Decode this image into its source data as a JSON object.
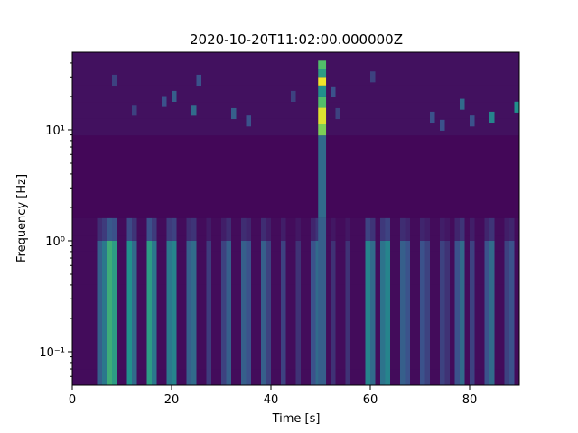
{
  "chart_data": {
    "type": "heatmap",
    "title": "2020-10-20T11:02:00.000000Z",
    "xlabel": "Time [s]",
    "ylabel": "Frequency [Hz]",
    "xlim": [
      0,
      90
    ],
    "ylim": [
      0.05,
      50
    ],
    "yscale": "log",
    "colormap": "viridis",
    "grid": false,
    "legend": "none",
    "x_ticks": [
      0,
      20,
      40,
      60,
      80
    ],
    "x_tick_labels": [
      "0",
      "20",
      "40",
      "60",
      "80"
    ],
    "y_ticks": [
      0.1,
      1,
      10
    ],
    "y_tick_labels": [
      "10⁻¹",
      "10⁰",
      "10¹"
    ],
    "time_bin_width": 1,
    "freq_bins": [
      0.05,
      0.07,
      0.1,
      0.14,
      0.2,
      0.28,
      0.4,
      0.56,
      0.8,
      1.1,
      1.6,
      2.2,
      3.2,
      4.5,
      6.3,
      8.9,
      12.6,
      17.8,
      25.1,
      35.5,
      50
    ],
    "low_freq_band": {
      "freq_range": [
        0.05,
        1.6
      ],
      "columns": [
        {
          "t": 5,
          "v": 0.3
        },
        {
          "t": 6,
          "v": 0.4
        },
        {
          "t": 7,
          "v": 0.62
        },
        {
          "t": 8,
          "v": 0.55
        },
        {
          "t": 11,
          "v": 0.5
        },
        {
          "t": 12,
          "v": 0.35
        },
        {
          "t": 15,
          "v": 0.55
        },
        {
          "t": 16,
          "v": 0.4
        },
        {
          "t": 19,
          "v": 0.4
        },
        {
          "t": 20,
          "v": 0.45
        },
        {
          "t": 23,
          "v": 0.3
        },
        {
          "t": 24,
          "v": 0.35
        },
        {
          "t": 27,
          "v": 0.18
        },
        {
          "t": 30,
          "v": 0.2
        },
        {
          "t": 31,
          "v": 0.3
        },
        {
          "t": 34,
          "v": 0.3
        },
        {
          "t": 35,
          "v": 0.25
        },
        {
          "t": 38,
          "v": 0.3
        },
        {
          "t": 39,
          "v": 0.2
        },
        {
          "t": 42,
          "v": 0.2
        },
        {
          "t": 45,
          "v": 0.15
        },
        {
          "t": 48,
          "v": 0.25
        },
        {
          "t": 49,
          "v": 0.35
        },
        {
          "t": 52,
          "v": 0.15
        },
        {
          "t": 55,
          "v": 0.15
        },
        {
          "t": 59,
          "v": 0.45
        },
        {
          "t": 60,
          "v": 0.35
        },
        {
          "t": 62,
          "v": 0.38
        },
        {
          "t": 63,
          "v": 0.45
        },
        {
          "t": 66,
          "v": 0.3
        },
        {
          "t": 67,
          "v": 0.25
        },
        {
          "t": 70,
          "v": 0.25
        },
        {
          "t": 71,
          "v": 0.2
        },
        {
          "t": 74,
          "v": 0.2
        },
        {
          "t": 75,
          "v": 0.15
        },
        {
          "t": 77,
          "v": 0.25
        },
        {
          "t": 78,
          "v": 0.35
        },
        {
          "t": 80,
          "v": 0.2
        },
        {
          "t": 83,
          "v": 0.25
        },
        {
          "t": 84,
          "v": 0.35
        },
        {
          "t": 87,
          "v": 0.2
        },
        {
          "t": 88,
          "v": 0.25
        }
      ]
    },
    "event_column": {
      "t": 49.5,
      "cells": [
        {
          "f0": 1.6,
          "f1": 8.9,
          "v": 0.35
        },
        {
          "f0": 8.9,
          "f1": 11.2,
          "v": 0.8
        },
        {
          "f0": 11.2,
          "f1": 15.8,
          "v": 0.95
        },
        {
          "f0": 15.8,
          "f1": 20,
          "v": 0.7
        },
        {
          "f0": 20,
          "f1": 25.1,
          "v": 0.5
        },
        {
          "f0": 25.1,
          "f1": 30,
          "v": 0.98
        },
        {
          "f0": 30,
          "f1": 35.5,
          "v": 0.55
        },
        {
          "f0": 35.5,
          "f1": 42,
          "v": 0.7
        }
      ]
    },
    "high_freq_speckles": [
      {
        "t": 12,
        "f": 15,
        "v": 0.2
      },
      {
        "t": 18,
        "f": 18,
        "v": 0.25
      },
      {
        "t": 20,
        "f": 20,
        "v": 0.3
      },
      {
        "t": 24,
        "f": 15,
        "v": 0.35
      },
      {
        "t": 25,
        "f": 28,
        "v": 0.25
      },
      {
        "t": 32,
        "f": 14,
        "v": 0.3
      },
      {
        "t": 35,
        "f": 12,
        "v": 0.25
      },
      {
        "t": 44,
        "f": 20,
        "v": 0.2
      },
      {
        "t": 52,
        "f": 22,
        "v": 0.25
      },
      {
        "t": 53,
        "f": 14,
        "v": 0.2
      },
      {
        "t": 72,
        "f": 13,
        "v": 0.25
      },
      {
        "t": 74,
        "f": 11,
        "v": 0.25
      },
      {
        "t": 78,
        "f": 17,
        "v": 0.35
      },
      {
        "t": 80,
        "f": 12,
        "v": 0.25
      },
      {
        "t": 84,
        "f": 13,
        "v": 0.45
      },
      {
        "t": 89,
        "f": 16,
        "v": 0.5
      },
      {
        "t": 8,
        "f": 28,
        "v": 0.2
      },
      {
        "t": 60,
        "f": 30,
        "v": 0.2
      }
    ]
  }
}
